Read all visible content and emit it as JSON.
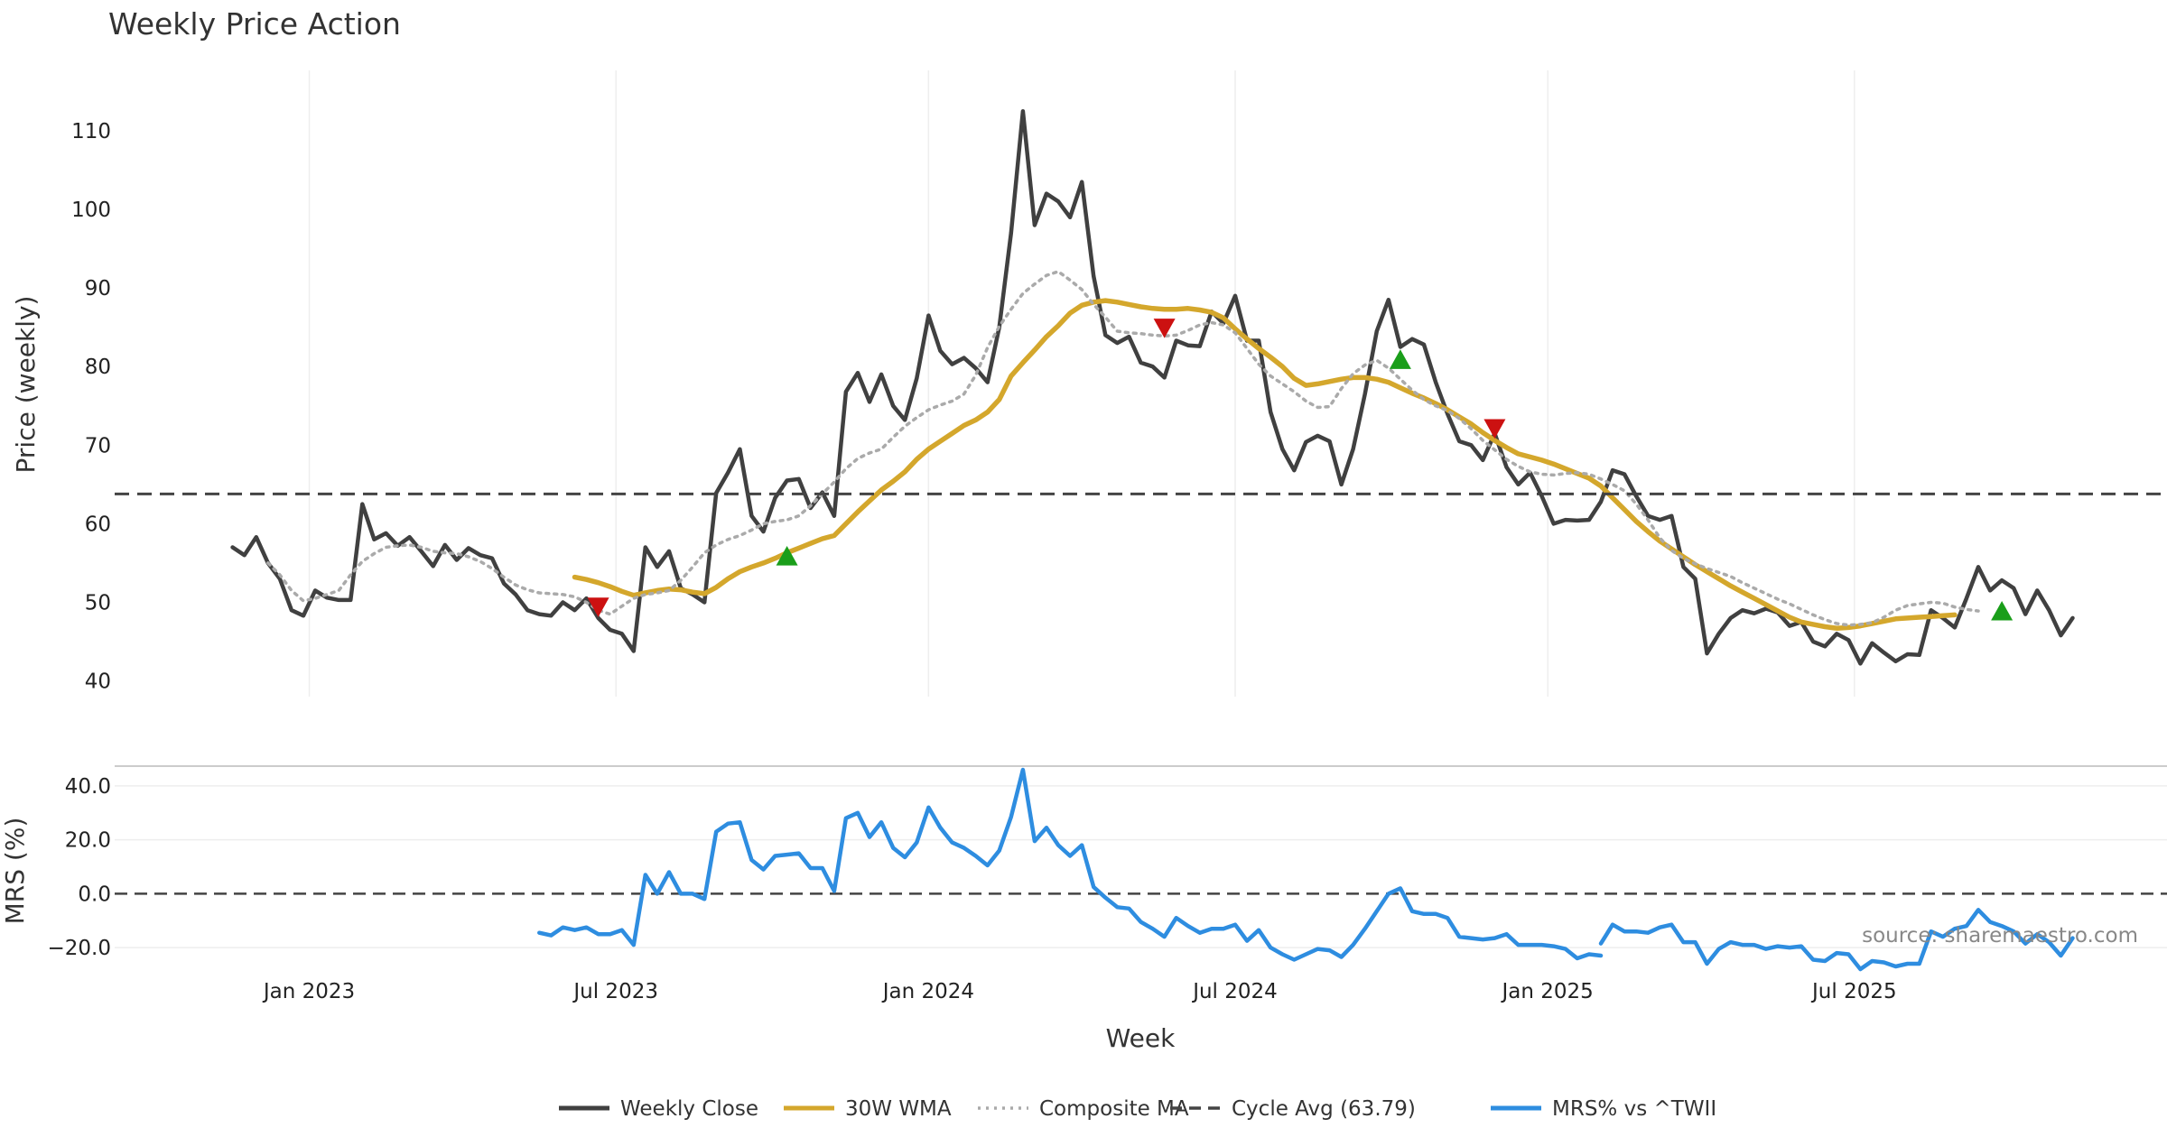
{
  "chart_data": [
    {
      "type": "line",
      "title": "Weekly Price Action",
      "ylabel": "Price (weekly)",
      "ylim": [
        38,
        117
      ],
      "yticks": [
        40,
        50,
        60,
        70,
        80,
        90,
        100,
        110
      ],
      "xlim": [
        -10,
        164
      ],
      "x_unit": "weeks since 2022-11-18",
      "series": [
        {
          "name": "Weekly Close",
          "color": "#404040",
          "values": [
            57,
            56,
            58.3,
            55,
            53,
            49,
            48.3,
            51.5,
            50.6,
            50.3,
            50.3,
            62.5,
            58,
            58.8,
            57.2,
            58.3,
            56.5,
            54.6,
            57.3,
            55.4,
            56.9,
            56,
            55.6,
            52.4,
            51,
            49,
            48.5,
            48.3,
            50,
            49,
            50.5,
            48,
            46.5,
            46,
            43.8,
            57,
            54.5,
            56.5,
            51.8,
            51,
            50,
            63.9,
            66.5,
            69.5,
            61,
            59,
            63.3,
            65.5,
            65.7,
            62,
            64,
            61,
            76.8,
            79.2,
            75.5,
            79,
            75,
            73.2,
            78.5,
            86.5,
            82,
            80.3,
            81.1,
            79.8,
            78,
            85,
            97,
            112.5,
            98,
            102,
            101,
            99,
            103.5,
            91.5,
            84,
            83,
            83.8,
            80.5,
            80,
            78.6,
            83.3,
            82.7,
            82.6,
            87,
            85.5,
            89,
            83.3,
            83.3,
            74.2,
            69.5,
            66.8,
            70.4,
            71.2,
            70.5,
            65,
            69.5,
            76.5,
            84.5,
            88.5,
            82.5,
            83.5,
            82.8,
            78,
            74,
            70.5,
            70,
            68.1,
            71.5,
            67.2,
            65,
            66.5,
            63.5,
            60,
            60.5,
            60.4,
            60.5,
            62.8,
            66.8,
            66.3,
            63.5,
            61,
            60.5,
            61,
            54.5,
            53,
            43.5,
            46,
            48,
            49,
            48.6,
            49.2,
            48.7,
            47,
            47.5,
            45,
            44.4,
            46,
            45.2,
            42.2,
            44.8,
            43.6,
            42.5,
            43.4,
            43.3,
            49,
            48,
            46.8,
            50.5,
            54.5,
            51.5,
            52.8,
            51.8,
            48.5,
            51.5,
            49,
            45.8,
            48
          ]
        },
        {
          "name": "30W WMA",
          "color": "#d4a72c",
          "start": 29,
          "values": [
            53.2,
            52.9,
            52.5,
            52,
            51.4,
            50.9,
            51.2,
            51.5,
            51.7,
            51.6,
            51.3,
            51.1,
            51.9,
            53.0,
            53.9,
            54.5,
            55.0,
            55.6,
            56.3,
            56.9,
            57.5,
            58.1,
            58.5,
            60.0,
            61.5,
            62.9,
            64.3,
            65.4,
            66.6,
            68.2,
            69.5,
            70.5,
            71.5,
            72.5,
            73.2,
            74.2,
            75.8,
            78.8,
            80.5,
            82.1,
            83.8,
            85.2,
            86.8,
            87.8,
            88.2,
            88.4,
            88.2,
            87.9,
            87.6,
            87.4,
            87.3,
            87.3,
            87.4,
            87.2,
            86.9,
            86.2,
            84.8,
            83.5,
            82.3,
            81.2,
            80.0,
            78.5,
            77.6,
            77.8,
            78.1,
            78.4,
            78.6,
            78.6,
            78.4,
            78.0,
            77.3,
            76.6,
            76.0,
            75.3,
            74.5,
            73.6,
            72.7,
            71.6,
            70.6,
            69.7,
            68.9,
            68.5,
            68.1,
            67.6,
            67.0,
            66.4,
            65.8,
            64.8,
            63.3,
            61.8,
            60.3,
            59.0,
            57.8,
            56.8,
            55.8,
            54.8,
            53.9,
            53.0,
            52.1,
            51.3,
            50.5,
            49.7,
            48.9,
            48.1,
            47.5,
            47.2,
            46.9,
            46.7,
            46.8,
            47.0,
            47.3,
            47.6,
            47.9,
            48.0,
            48.1,
            48.2,
            48.3,
            48.4
          ]
        },
        {
          "name": "Composite MA",
          "color": "#aaaaaa",
          "start": 3,
          "values": [
            55,
            53.5,
            51.5,
            50.2,
            50.5,
            51,
            51.5,
            53.5,
            55.2,
            56.2,
            57,
            57.2,
            57.3,
            57,
            56.5,
            56.3,
            56.2,
            55.8,
            55.2,
            54.3,
            53.2,
            52.2,
            51.6,
            51.2,
            51.1,
            51,
            50.7,
            50,
            49,
            48.5,
            49.5,
            50.5,
            51,
            51.2,
            51.5,
            52.8,
            54.5,
            56.3,
            57.3,
            58,
            58.5,
            59.2,
            60,
            60.3,
            60.5,
            61,
            62.3,
            63.8,
            65.3,
            67,
            68.3,
            69,
            69.5,
            71,
            72.4,
            73.5,
            74.5,
            75.1,
            75.6,
            76.5,
            78.9,
            82.4,
            85.1,
            87.3,
            89.3,
            90.5,
            91.6,
            92.1,
            91,
            89.8,
            87.9,
            86.3,
            84.5,
            84.3,
            84.2,
            84,
            83.9,
            84,
            84.6,
            85.3,
            85.6,
            85.3,
            84.3,
            82.3,
            80.3,
            78.8,
            77.8,
            76.8,
            75.6,
            74.8,
            74.9,
            77.2,
            79.1,
            80.2,
            80.8,
            79.8,
            78.4,
            77,
            75.8,
            75,
            74.4,
            73.4,
            72.1,
            70.6,
            69.4,
            68.2,
            67.3,
            66.6,
            66.3,
            66.2,
            66.4,
            66.5,
            66.3,
            65.7,
            65,
            64.2,
            62.5,
            60.5,
            58.2,
            56.6,
            55.6,
            54.9,
            54.3,
            53.8,
            53.3,
            52.5,
            51.8,
            51.1,
            50.4,
            49.8,
            49.1,
            48.4,
            47.8,
            47.3,
            47.1,
            47.2,
            47.4,
            48.1,
            49,
            49.6,
            49.8,
            50,
            49.9,
            49.4,
            49.1,
            48.9
          ]
        },
        {
          "name": "Cycle Avg (63.79)",
          "color": "#444444",
          "style": "dashed",
          "constant": 63.79
        }
      ],
      "signals": {
        "buy": [
          [
            47,
            55.8
          ],
          [
            99,
            80.8
          ],
          [
            150,
            48.8
          ]
        ],
        "sell": [
          [
            31,
            49.5
          ],
          [
            79,
            85
          ],
          [
            107,
            72.2
          ]
        ]
      },
      "xticks": [
        {
          "x": 6.5,
          "label": "Jan 2023"
        },
        {
          "x": 32.5,
          "label": "Jul 2023"
        },
        {
          "x": 59,
          "label": "Jan 2024"
        },
        {
          "x": 85,
          "label": "Jul 2024"
        },
        {
          "x": 111.5,
          "label": "Jan 2025"
        },
        {
          "x": 137.5,
          "label": "Jul 2025"
        }
      ]
    },
    {
      "type": "line",
      "ylabel": "MRS (%)",
      "xlabel": "Week",
      "ylim": [
        -26,
        47
      ],
      "yticks": [
        -20,
        0,
        20,
        40
      ],
      "ytick_labels": [
        "−20.0",
        "0.0",
        "20.0",
        "40.0"
      ],
      "zero_line": 0,
      "series": [
        {
          "name": "MRS% vs ^TWII",
          "color": "#2e8de0",
          "segments": [
            {
              "start": 26,
              "values": [
                -14.5,
                -15.5,
                -12.5,
                -13.5,
                -12.5,
                -15,
                -15,
                -13.5,
                -19,
                7,
                0,
                8,
                0,
                0,
                -2,
                23,
                26,
                26.5,
                12.5,
                9,
                14,
                14.5,
                15,
                9.5,
                9.5,
                1,
                28,
                30,
                21,
                26.5,
                17,
                13.5,
                19,
                32,
                24.5,
                19,
                17,
                14,
                10.5,
                16,
                28.5,
                46,
                19.5,
                24.5,
                18,
                14,
                18,
                2.5,
                -1.5,
                -5,
                -5.5,
                -10.5,
                -13,
                -16,
                -9,
                -12,
                -14.5,
                -13,
                -13,
                -11.5,
                -17.5,
                -13.5,
                -20,
                -22.5,
                -24.5,
                -22.5,
                -20.5,
                -21,
                -23.5,
                -19,
                -13,
                -6.5,
                0,
                2,
                -6.5,
                -7.5,
                -7.5,
                -9,
                -16,
                -16.5,
                -17,
                -16.5,
                -15,
                -19,
                -19,
                -19,
                -19.5,
                -20.5,
                -24,
                -22.5,
                -23
              ]
            },
            {
              "start": 116,
              "values": [
                -18.5,
                -11.5,
                -14,
                -14,
                -14.5,
                -12.5,
                -11.5,
                -18,
                -18,
                -26,
                -20.5,
                -18,
                -19,
                -19,
                -20.5,
                -19.5,
                -20,
                -19.5,
                -24.5,
                -25,
                -22,
                -22.5,
                -28,
                -25,
                -25.5,
                -27,
                -26,
                -26,
                -14,
                -16,
                -13,
                -12,
                -6,
                -10.5,
                -12,
                -14,
                -18.5,
                -15,
                -18,
                -23,
                -16.5
              ]
            }
          ]
        }
      ]
    }
  ],
  "legend": [
    {
      "label": "Weekly Close",
      "style": "solid",
      "color": "#404040"
    },
    {
      "label": "30W WMA",
      "style": "solid",
      "color": "#d4a72c"
    },
    {
      "label": "Composite MA",
      "style": "dotted",
      "color": "#aaaaaa"
    },
    {
      "label": "Cycle Avg (63.79)",
      "style": "dashed",
      "color": "#444444"
    },
    {
      "label": "MRS% vs ^TWII",
      "style": "solid",
      "color": "#2e8de0"
    }
  ],
  "colors": {
    "buy": "#1a9e1a",
    "sell": "#cc1111",
    "grid": "#eeeeee",
    "separator": "#cccccc"
  },
  "source": "source: sharemaestro.com"
}
